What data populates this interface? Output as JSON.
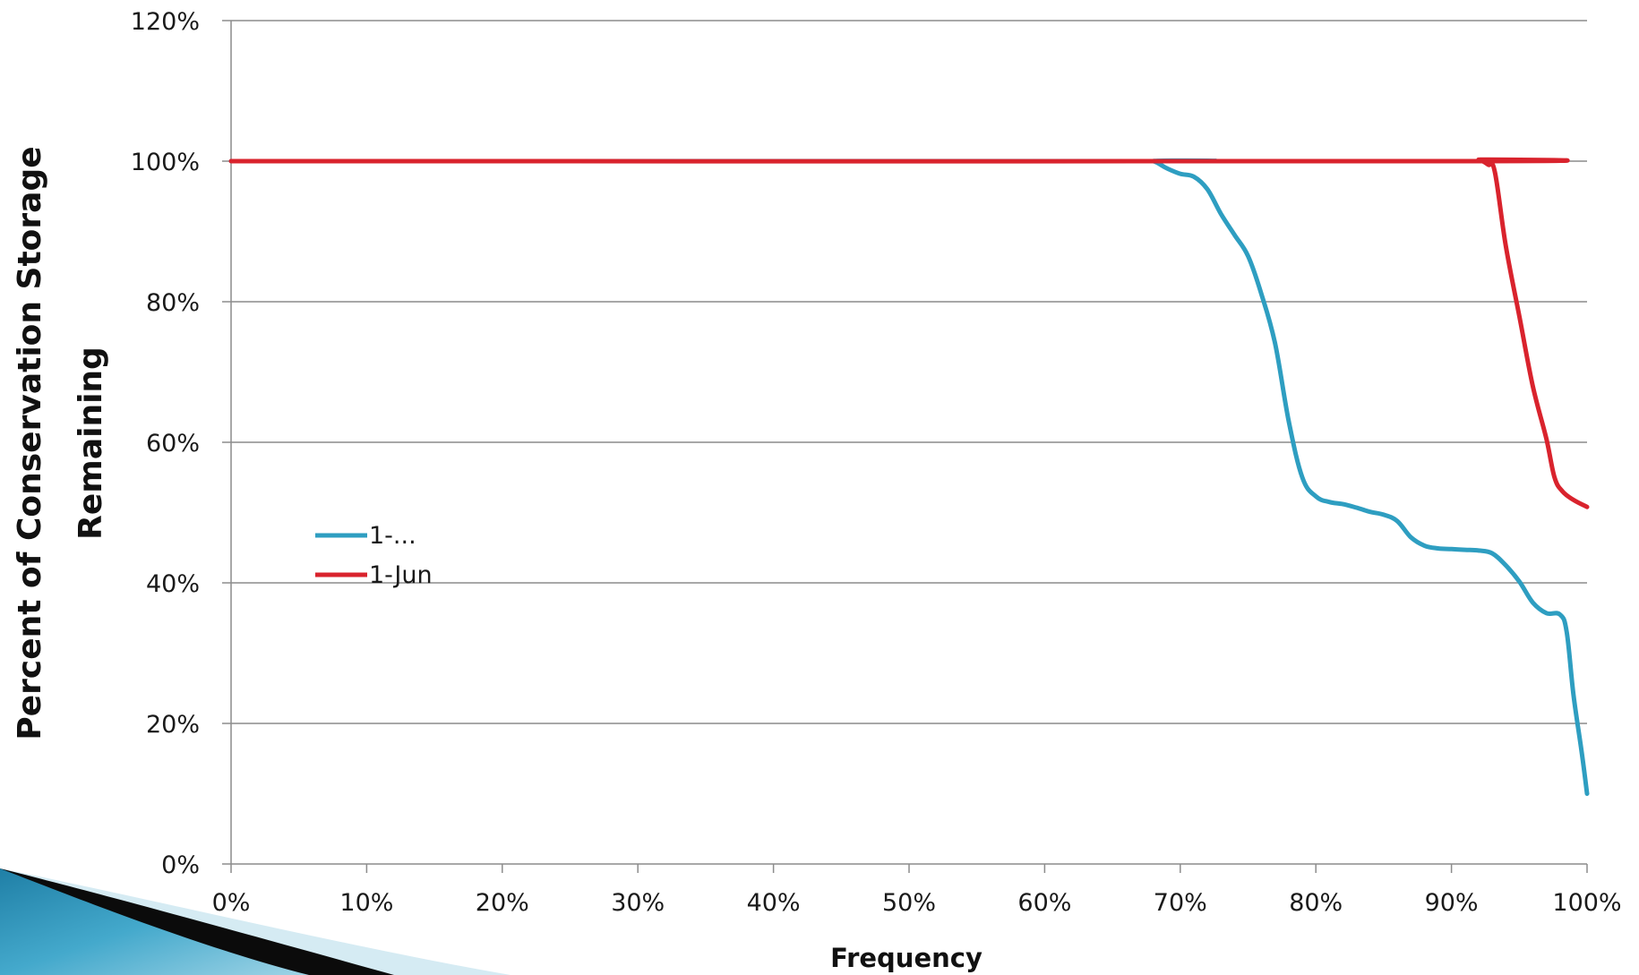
{
  "chart_data": {
    "type": "line",
    "xlabel": "Frequency",
    "ylabel_line1": "Percent of Conservation Storage",
    "ylabel_line2": "Remaining",
    "xlim": [
      0,
      100
    ],
    "ylim": [
      0,
      120
    ],
    "x_ticks": [
      "0%",
      "10%",
      "20%",
      "30%",
      "40%",
      "50%",
      "60%",
      "70%",
      "80%",
      "90%",
      "100%"
    ],
    "y_ticks": [
      "0%",
      "20%",
      "40%",
      "60%",
      "80%",
      "100%",
      "120%"
    ],
    "grid": "horizontal",
    "legend_position": "left-middle",
    "series": [
      {
        "name": "1-...",
        "color": "#2e9ec1",
        "points": [
          [
            0,
            100
          ],
          [
            67,
            100
          ],
          [
            68,
            100
          ],
          [
            69,
            99
          ],
          [
            70,
            98.2
          ],
          [
            71,
            97.8
          ],
          [
            72,
            96
          ],
          [
            73,
            92.5
          ],
          [
            74,
            89.5
          ],
          [
            75,
            86.5
          ],
          [
            76,
            81
          ],
          [
            77,
            74
          ],
          [
            78,
            63
          ],
          [
            79,
            55
          ],
          [
            80,
            52.3
          ],
          [
            81,
            51.5
          ],
          [
            82,
            51.2
          ],
          [
            83,
            50.7
          ],
          [
            84,
            50.1
          ],
          [
            85,
            49.7
          ],
          [
            86,
            48.8
          ],
          [
            87,
            46.5
          ],
          [
            88,
            45.3
          ],
          [
            89,
            44.9
          ],
          [
            90,
            44.8
          ],
          [
            91,
            44.7
          ],
          [
            92,
            44.6
          ],
          [
            93,
            44.2
          ],
          [
            94,
            42.5
          ],
          [
            95,
            40.2
          ],
          [
            96,
            37.2
          ],
          [
            97,
            35.7
          ],
          [
            98,
            35.5
          ],
          [
            98.5,
            33
          ],
          [
            99,
            24
          ],
          [
            99.6,
            16
          ],
          [
            100,
            10
          ]
        ]
      },
      {
        "name": "1-Jun",
        "color": "#d9232d",
        "points": [
          [
            0,
            100
          ],
          [
            91,
            100
          ],
          [
            92,
            100.2
          ],
          [
            92.7,
            99.5
          ],
          [
            93.2,
            98.5
          ],
          [
            94,
            88
          ],
          [
            95,
            78
          ],
          [
            96,
            68
          ],
          [
            97,
            60.5
          ],
          [
            97.6,
            55
          ],
          [
            98.2,
            53
          ],
          [
            99,
            51.8
          ],
          [
            100,
            50.8
          ]
        ]
      }
    ]
  }
}
